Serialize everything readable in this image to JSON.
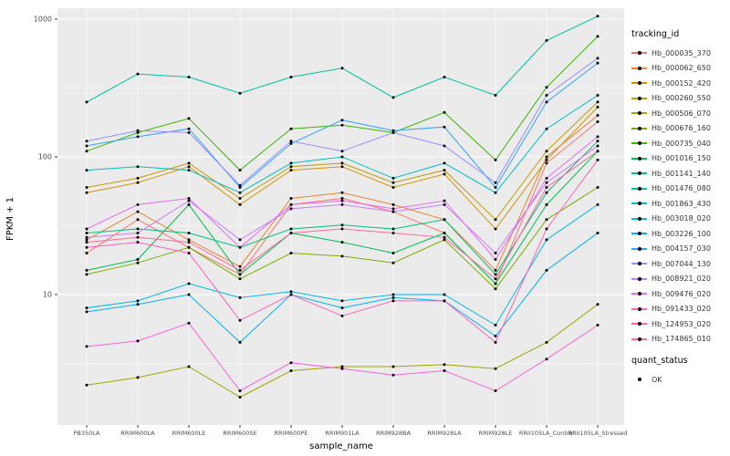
{
  "chart_data": {
    "type": "line",
    "title": "",
    "xlabel": "sample_name",
    "ylabel": "FPKM + 1",
    "y_scale": "log10",
    "ylim": [
      1.1,
      1200
    ],
    "yticks": [
      "10",
      "100",
      "1000"
    ],
    "ytick_values": [
      10,
      100,
      1000
    ],
    "minor_ytick_values": [
      3.1623,
      31.623,
      316.23
    ],
    "grid": true,
    "legend_position": "right",
    "panel_bg": "#EBEBEB",
    "grid_color": "#FFFFFF",
    "point_color": "#000000",
    "categories": [
      "PB350LA",
      "RRIM600LA",
      "RRIM600LE",
      "RRIM600SE",
      "RRIM600PE",
      "RRIM901LA",
      "RRIM928BA",
      "RRIM928LA",
      "RRIM928LE",
      "RRII105LA_Control",
      "RRII105LA_Stressed"
    ],
    "series": [
      {
        "name": "Hb_000035_370",
        "color": "#F8766D",
        "values": [
          20,
          35,
          22,
          14,
          45,
          50,
          40,
          28,
          12,
          90,
          180
        ]
      },
      {
        "name": "Hb_000062_650",
        "color": "#EA8331",
        "values": [
          25,
          40,
          25,
          16,
          50,
          55,
          45,
          35,
          15,
          100,
          200
        ]
      },
      {
        "name": "Hb_000152_420",
        "color": "#D89000",
        "values": [
          55,
          65,
          85,
          45,
          80,
          85,
          60,
          75,
          30,
          95,
          230
        ]
      },
      {
        "name": "Hb_000260_550",
        "color": "#C09B00",
        "values": [
          60,
          70,
          90,
          50,
          85,
          90,
          65,
          80,
          35,
          110,
          250
        ]
      },
      {
        "name": "Hb_000506_070",
        "color": "#A3A500",
        "values": [
          2.2,
          2.5,
          3.0,
          1.8,
          2.8,
          3.0,
          3.0,
          3.1,
          2.9,
          4.5,
          8.5
        ]
      },
      {
        "name": "Hb_000676_160",
        "color": "#7CAE00",
        "values": [
          14,
          17,
          22,
          13,
          20,
          19,
          17,
          25,
          11,
          35,
          60
        ]
      },
      {
        "name": "Hb_000735_040",
        "color": "#39B600",
        "values": [
          110,
          150,
          190,
          80,
          160,
          170,
          150,
          210,
          95,
          320,
          750
        ]
      },
      {
        "name": "Hb_001016_150",
        "color": "#00BB4E",
        "values": [
          15,
          18,
          45,
          14,
          28,
          24,
          20,
          28,
          12,
          45,
          110
        ]
      },
      {
        "name": "Hb_001141_140",
        "color": "#00BF7D",
        "values": [
          28,
          30,
          28,
          22,
          30,
          32,
          30,
          35,
          14,
          55,
          130
        ]
      },
      {
        "name": "Hb_001476_080",
        "color": "#00C1A3",
        "values": [
          250,
          400,
          380,
          290,
          380,
          440,
          270,
          380,
          280,
          700,
          1050
        ]
      },
      {
        "name": "Hb_001863_430",
        "color": "#00BFC4",
        "values": [
          80,
          85,
          80,
          55,
          90,
          100,
          70,
          90,
          55,
          160,
          280
        ]
      },
      {
        "name": "Hb_003018_020",
        "color": "#00BAE0",
        "values": [
          8,
          9,
          12,
          9.5,
          10.5,
          9,
          10,
          10,
          6,
          25,
          45
        ]
      },
      {
        "name": "Hb_003226_100",
        "color": "#00B0F6",
        "values": [
          7.5,
          8.5,
          10,
          4.5,
          10,
          8,
          9.5,
          9,
          5,
          15,
          28
        ]
      },
      {
        "name": "Hb_004157_030",
        "color": "#35A2FF",
        "values": [
          120,
          140,
          160,
          60,
          125,
          185,
          155,
          165,
          60,
          250,
          480
        ]
      },
      {
        "name": "Hb_007044_130",
        "color": "#9590FF",
        "values": [
          130,
          155,
          150,
          62,
          130,
          110,
          150,
          120,
          65,
          280,
          520
        ]
      },
      {
        "name": "Hb_008921_020",
        "color": "#C77CFF",
        "values": [
          26,
          28,
          48,
          25,
          42,
          45,
          40,
          45,
          20,
          65,
          120
        ]
      },
      {
        "name": "Hb_009476_020",
        "color": "#E76BF3",
        "values": [
          30,
          45,
          50,
          22,
          45,
          48,
          42,
          48,
          18,
          70,
          140
        ]
      },
      {
        "name": "Hb_091433_020",
        "color": "#FA62DB",
        "values": [
          4.2,
          4.6,
          6.2,
          2.0,
          3.2,
          2.9,
          2.6,
          2.8,
          2.0,
          3.4,
          6.0
        ]
      },
      {
        "name": "Hb_124953_020",
        "color": "#FF62BC",
        "values": [
          22,
          24,
          20,
          6.5,
          10,
          7,
          9,
          9,
          4.5,
          30,
          95
        ]
      },
      {
        "name": "Hb_174865_010",
        "color": "#FF6A98",
        "values": [
          24,
          26,
          24,
          15,
          28,
          30,
          28,
          26,
          13,
          60,
          110
        ]
      }
    ]
  },
  "legend": {
    "tracking_title": "tracking_id",
    "quant_title": "quant_status",
    "quant_items": [
      {
        "label": "OK"
      }
    ]
  }
}
